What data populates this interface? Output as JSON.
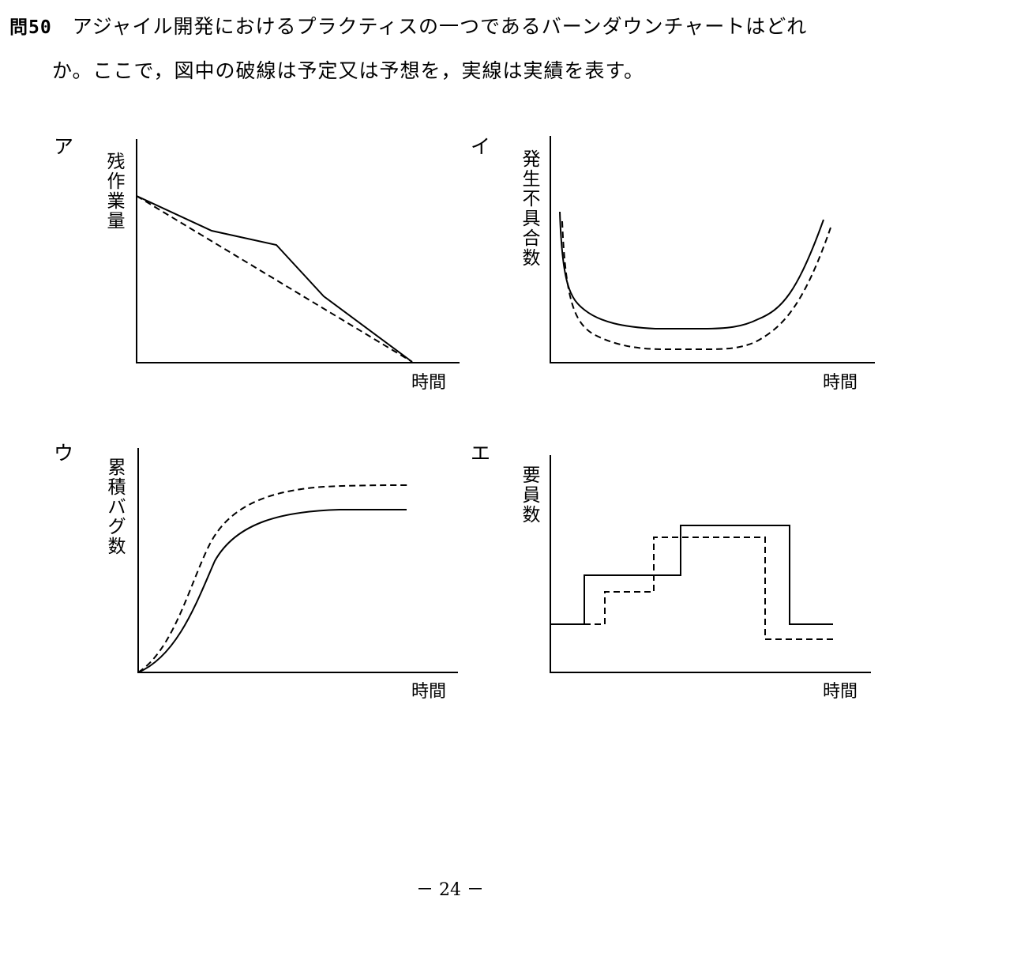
{
  "question": {
    "number": "問50",
    "line1": "アジャイル開発におけるプラクティスの一つであるバーンダウンチャートはどれ",
    "line2": "か。ここで，図中の破線は予定又は予想を，実線は実績を表す。"
  },
  "options": [
    {
      "label": "ア",
      "ylabel": "残\n作\n業\n量",
      "xlabel": "時間"
    },
    {
      "label": "イ",
      "ylabel": "発\n生\n不\n具\n合\n数",
      "xlabel": "時間"
    },
    {
      "label": "ウ",
      "ylabel": "累\n積\nバ\nグ\n数",
      "xlabel": "時間"
    },
    {
      "label": "エ",
      "ylabel": "要\n員\n数",
      "xlabel": "時間"
    }
  ],
  "page_number": "－ 24 －",
  "legend": {
    "dashed": "予定又は予想",
    "solid": "実績"
  }
}
